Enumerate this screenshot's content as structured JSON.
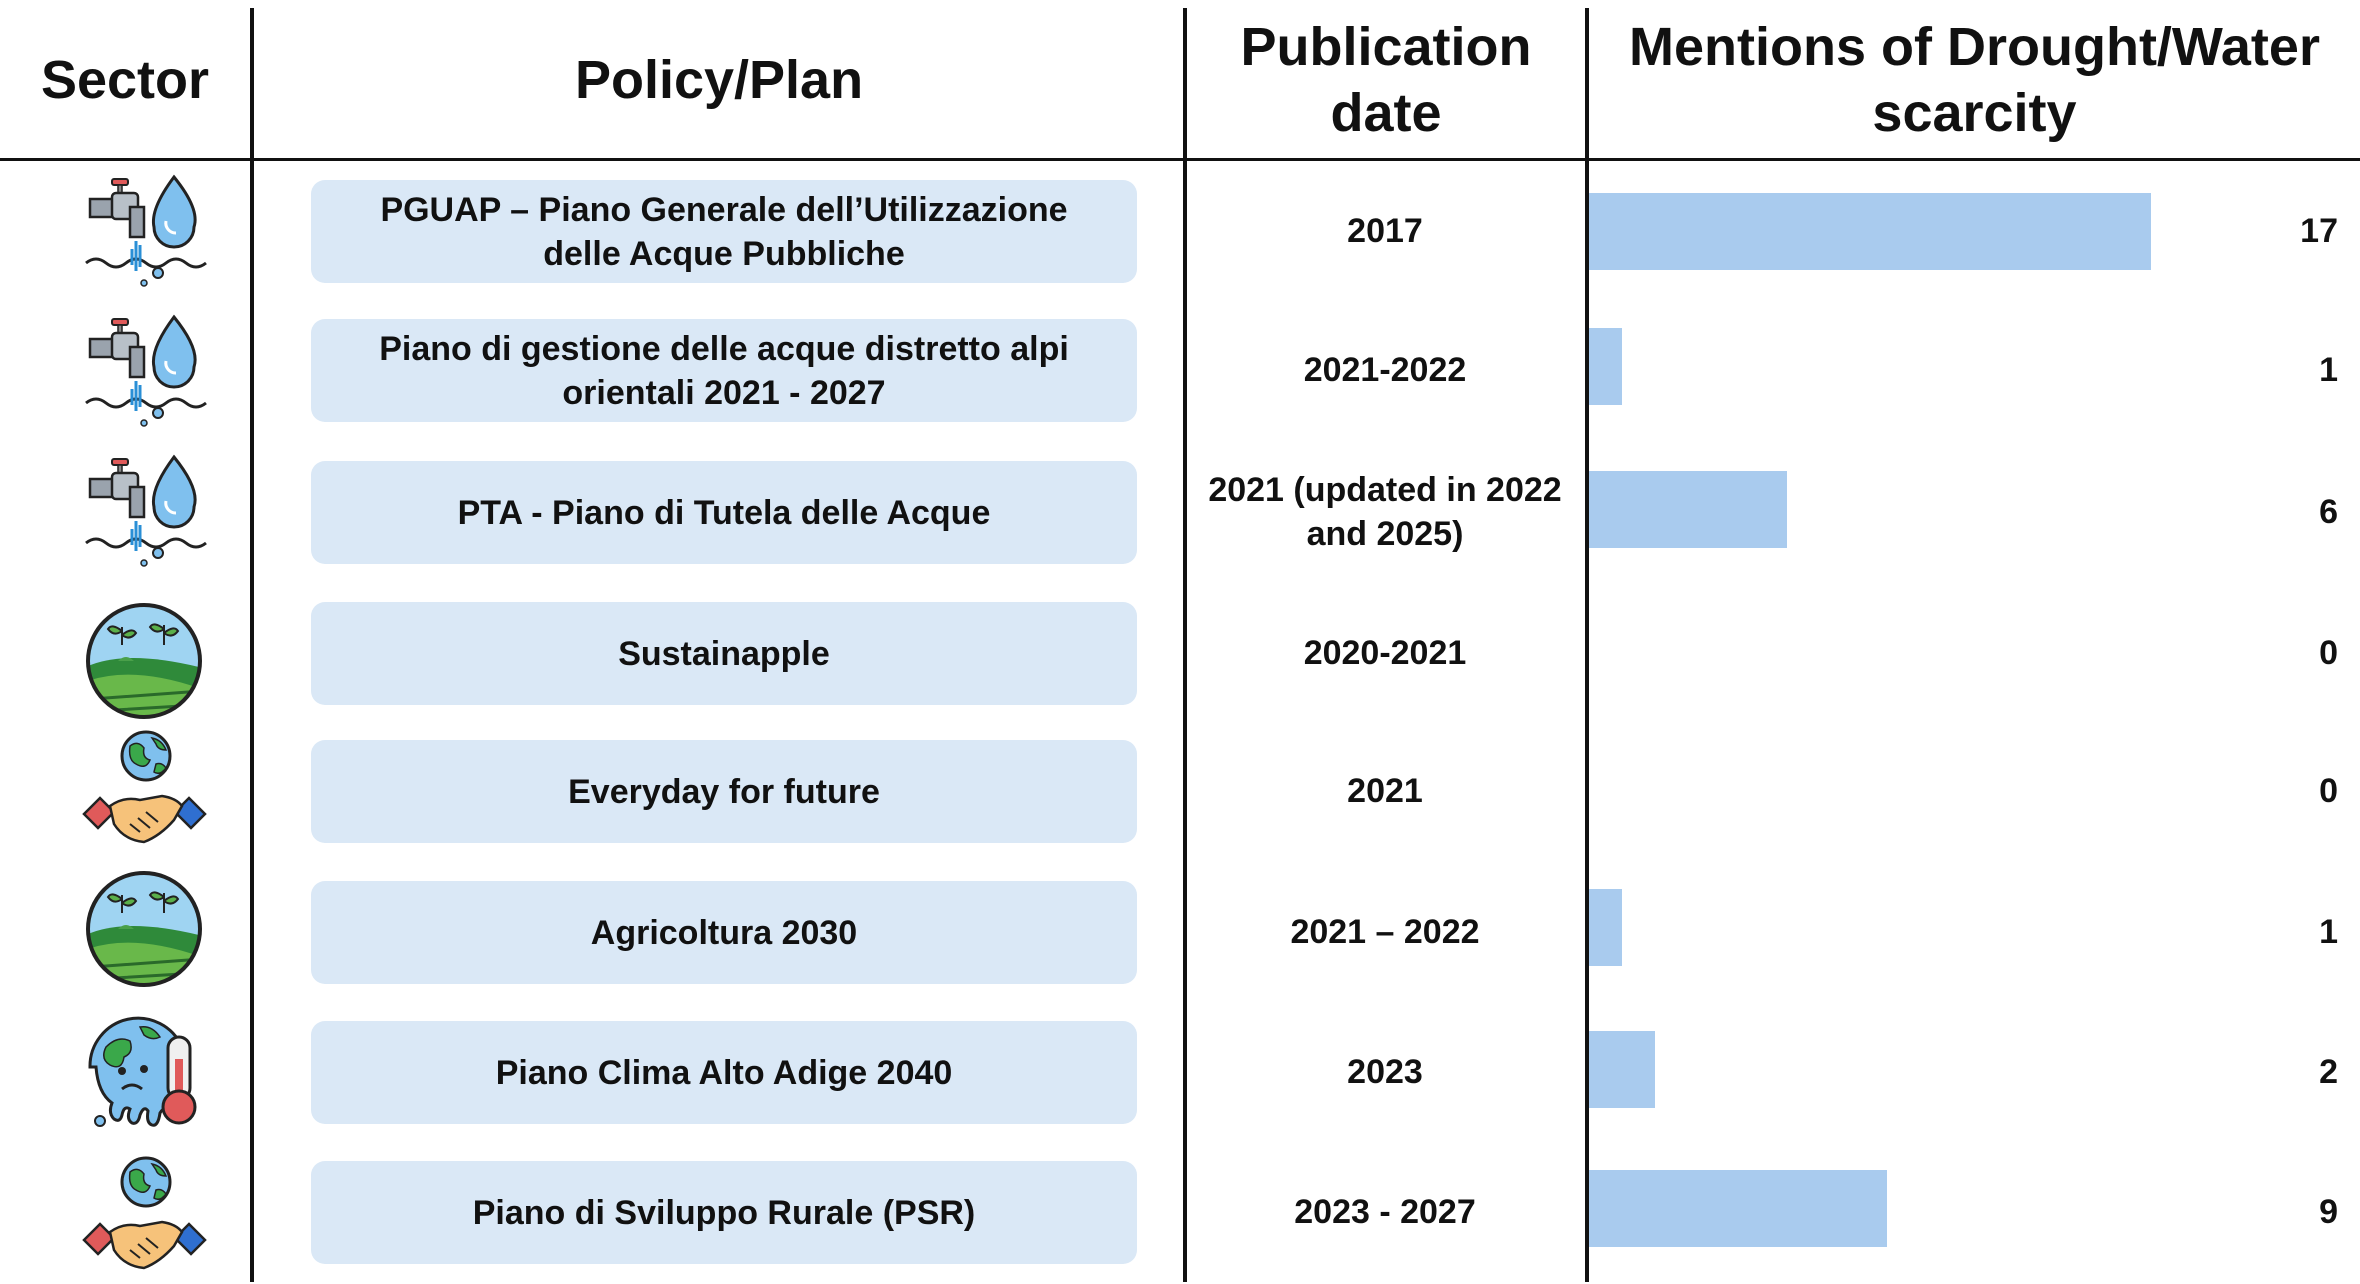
{
  "headers": {
    "sector": "Sector",
    "policy": "Policy/Plan",
    "date": "Publication date",
    "mentions": "Mentions of Drought/Water scarcity"
  },
  "colors": {
    "bar": "#a9cbee",
    "box": "#dae8f6"
  },
  "chart_data": {
    "type": "bar",
    "orientation": "horizontal",
    "categories": [
      "PGUAP – Piano Generale dell’Utilizzazione delle Acque Pubbliche",
      "Piano di gestione delle acque distretto alpi orientali 2021 - 2027",
      "PTA - Piano di Tutela delle Acque",
      "Sustainapple",
      "Everyday for future",
      "Agricoltura 2030",
      "Piano Clima Alto Adige 2040",
      "Piano di Sviluppo Rurale (PSR)"
    ],
    "values": [
      17,
      1,
      6,
      0,
      0,
      1,
      2,
      9
    ],
    "xlim": [
      0,
      17
    ],
    "grid": false
  },
  "rows": [
    {
      "icon": "water-tap-icon",
      "policy": "PGUAP – Piano Generale dell’Utilizzazione delle Acque Pubbliche",
      "date": "2017",
      "value": "17"
    },
    {
      "icon": "water-tap-icon",
      "policy": "Piano di gestione delle acque distretto alpi orientali 2021 - 2027",
      "date": "2021-2022",
      "value": "1"
    },
    {
      "icon": "water-tap-icon",
      "policy": "PTA - Piano di Tutela delle Acque",
      "date": "2021 (updated in 2022 and 2025)",
      "value": "6"
    },
    {
      "icon": "agriculture-globe-icon",
      "policy": "Sustainapple",
      "date": "2020-2021",
      "value": "0"
    },
    {
      "icon": "globe-handshake-icon",
      "policy": "Everyday for future",
      "date": "2021",
      "value": "0"
    },
    {
      "icon": "agriculture-globe-icon",
      "policy": "Agricoltura 2030",
      "date": "2021 – 2022",
      "value": "1"
    },
    {
      "icon": "climate-thermometer-icon",
      "policy": "Piano Clima Alto Adige 2040",
      "date": "2023",
      "value": "2"
    },
    {
      "icon": "globe-handshake-icon",
      "policy": "Piano di Sviluppo Rurale (PSR)",
      "date": "2023 - 2027",
      "value": "9"
    }
  ]
}
